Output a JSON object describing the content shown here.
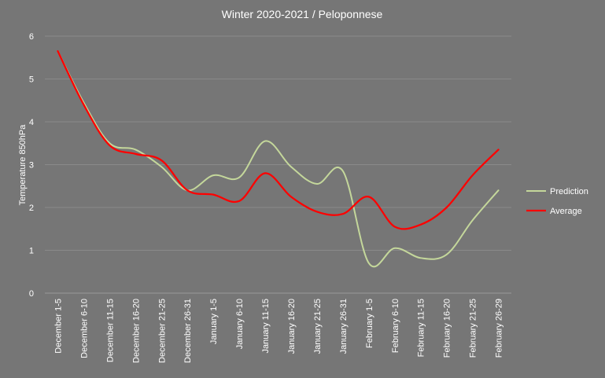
{
  "chart_data": {
    "type": "line",
    "title": "Winter 2020-2021 / Peloponnese",
    "xlabel": "",
    "ylabel": "Temperature 850hPa",
    "ylim": [
      0,
      6
    ],
    "yticks": [
      0,
      1,
      2,
      3,
      4,
      5,
      6
    ],
    "grid": true,
    "legend_position": "right",
    "categories": [
      "December 1-5",
      "December 6-10",
      "December 11-15",
      "December 16-20",
      "December 21-25",
      "December 26-31",
      "January 1-5",
      "January 6-10",
      "January 11-15",
      "January 16-20",
      "January 21-25",
      "January 26-31",
      "February 1-5",
      "February 6-10",
      "February 11-15",
      "February 16-20",
      "February 21-25",
      "February 26-29"
    ],
    "series": [
      {
        "name": "Prediction",
        "color": "#c4d79b",
        "values": [
          5.65,
          4.45,
          3.5,
          3.35,
          2.95,
          2.4,
          2.75,
          2.7,
          3.55,
          2.95,
          2.55,
          2.85,
          0.7,
          1.05,
          0.82,
          0.9,
          1.7,
          2.4
        ]
      },
      {
        "name": "Average",
        "color": "#ff0000",
        "values": [
          5.65,
          4.4,
          3.45,
          3.25,
          3.1,
          2.4,
          2.3,
          2.15,
          2.8,
          2.25,
          1.9,
          1.85,
          2.25,
          1.55,
          1.6,
          2.0,
          2.75,
          3.35
        ]
      }
    ]
  }
}
